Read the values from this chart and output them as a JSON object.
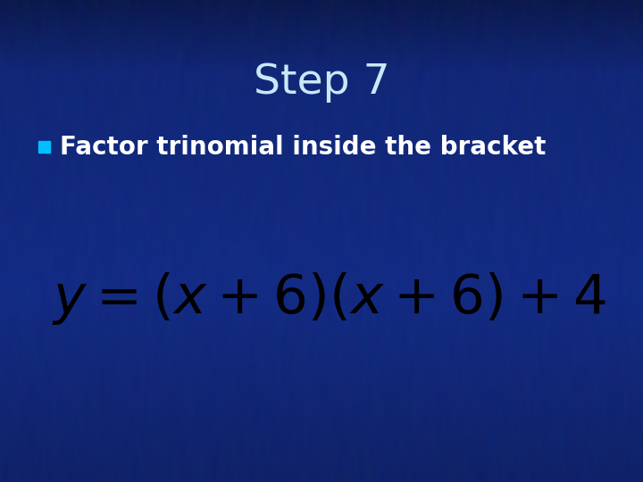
{
  "title": "Step 7",
  "bullet_text": "Factor trinomial inside the bracket",
  "equation_latex": "y = (x+6)(x+6)+4",
  "title_color": "#c8e8f8",
  "bullet_color": "#ffffff",
  "bullet_square_color": "#00bfff",
  "equation_color": "#000000",
  "title_fontsize": 34,
  "bullet_fontsize": 20,
  "equation_fontsize": 44,
  "figwidth": 7.2,
  "figheight": 5.4,
  "dpi": 100,
  "bg_base_r": 0.08,
  "bg_base_g": 0.18,
  "bg_base_b": 0.55,
  "noise_std": 0.03
}
